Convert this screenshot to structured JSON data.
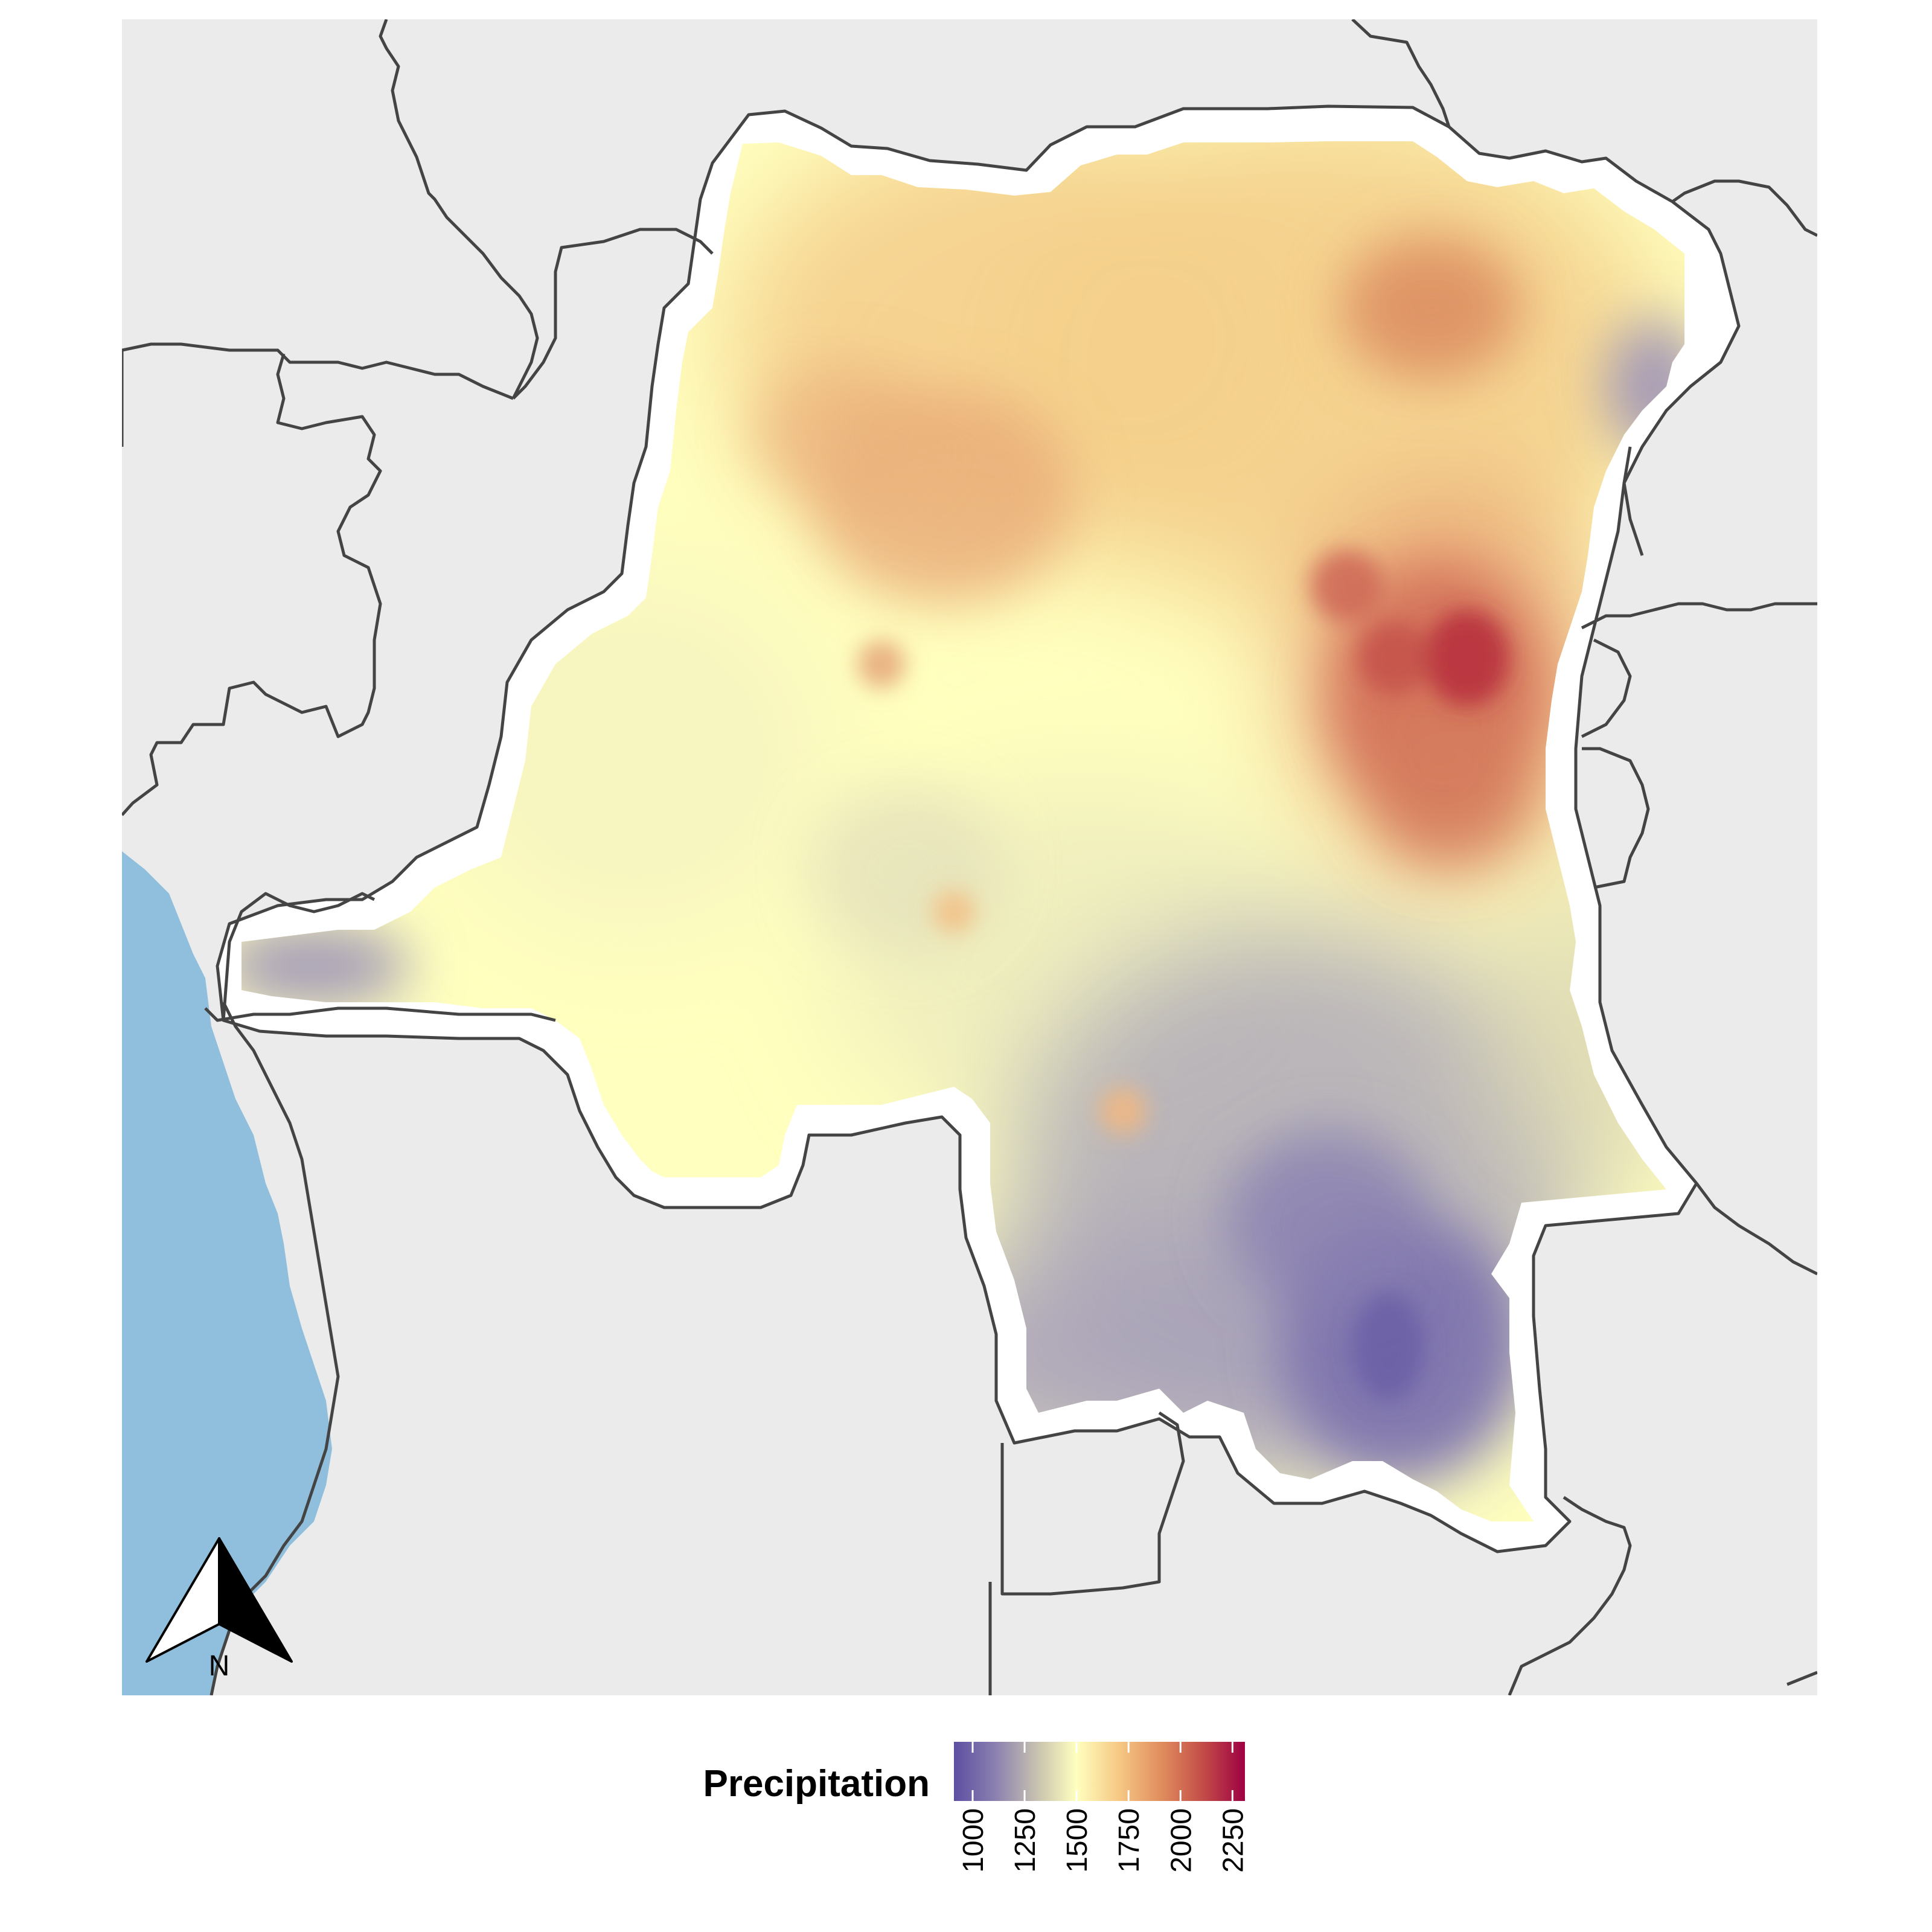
{
  "map": {
    "panel_background": "#ebebeb",
    "ocean_color": "#8fbfdc",
    "border_color": "#444444",
    "halo_color": "#ffffff"
  },
  "north_arrow": {
    "label": "N",
    "icon": "north-arrow-icon"
  },
  "legend": {
    "title": "Precipitation",
    "ticks": [
      "1000",
      "1250",
      "1500",
      "1750",
      "2000",
      "2250"
    ],
    "tick_values": [
      1000,
      1250,
      1500,
      1750,
      2000,
      2250
    ],
    "range": [
      910,
      2310
    ],
    "colors": [
      "#5e4fa2",
      "#9a8fb6",
      "#d8d4b0",
      "#ffffbf",
      "#f6c783",
      "#df8a5c",
      "#c24a48",
      "#9e0142"
    ]
  },
  "colors": {
    "low": "#5e4fa2",
    "mid": "#ffffbf",
    "high": "#9e0142"
  }
}
